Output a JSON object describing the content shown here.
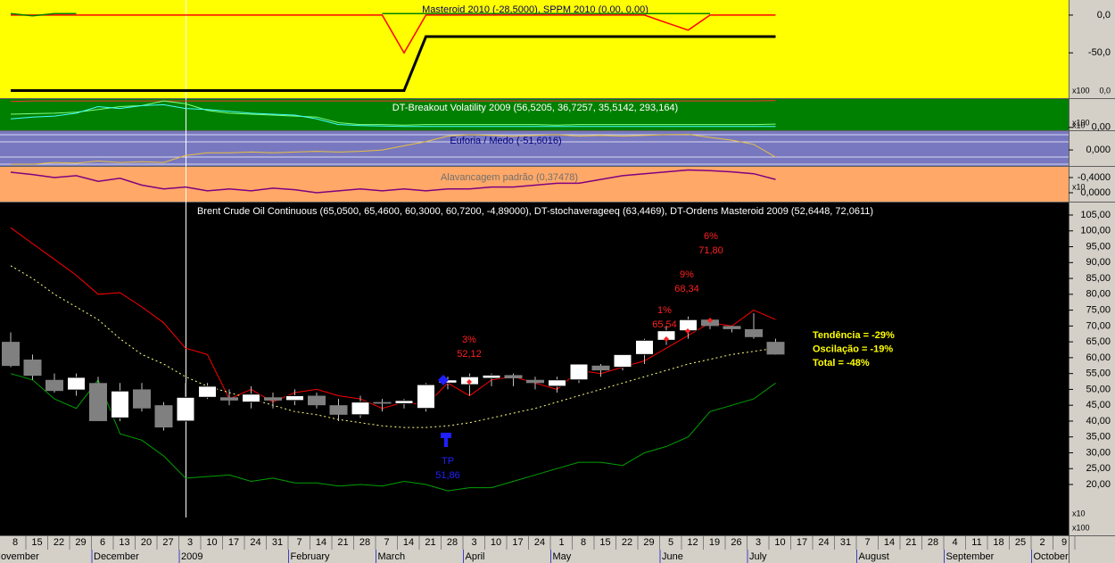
{
  "chart_data": [
    {
      "type": "line",
      "title": "Masteroid 2010 (-28,5000), SPPM 2010 (0,00, 0,00)",
      "ylim": [
        -110,
        20
      ],
      "yticks": [
        {
          "value": 0,
          "label": "0,0"
        },
        {
          "value": -50,
          "label": "-50,0"
        }
      ],
      "axis_texts": [
        "x100",
        "0,0"
      ],
      "series": [
        {
          "color": "#ff0000",
          "width": 1.5,
          "values": [
            0,
            0,
            0,
            0,
            0,
            0,
            0,
            0,
            0,
            0,
            0,
            0,
            0,
            0,
            0,
            0,
            0,
            0,
            -50,
            0,
            0,
            0,
            0,
            0,
            0,
            0,
            0,
            0,
            0,
            0,
            -10,
            -20,
            0,
            0,
            0,
            0,
            null,
            null,
            null,
            null,
            null,
            null,
            null,
            null,
            null,
            null,
            null,
            null,
            null
          ]
        },
        {
          "color": "#008000",
          "width": 1.5,
          "values": [
            2,
            -1,
            2,
            2,
            null,
            null,
            null,
            null,
            null,
            null,
            null,
            null,
            null,
            null,
            null,
            null,
            null,
            2,
            2,
            2,
            2,
            2,
            2,
            2,
            2,
            2,
            2,
            2,
            2,
            2,
            2,
            2,
            2,
            null,
            null,
            null,
            null,
            null,
            null,
            null,
            null,
            null,
            null,
            null,
            null,
            null,
            null,
            null,
            null
          ]
        },
        {
          "color": "#000000",
          "width": 3,
          "values": [
            -100,
            -100,
            -100,
            -100,
            -100,
            -100,
            -100,
            -100,
            -100,
            -100,
            -100,
            -100,
            -100,
            -100,
            -100,
            -100,
            -100,
            -100,
            -100,
            -28.5,
            -28.5,
            -28.5,
            -28.5,
            -28.5,
            -28.5,
            -28.5,
            -28.5,
            -28.5,
            -28.5,
            -28.5,
            -28.5,
            -28.5,
            -28.5,
            -28.5,
            -28.5,
            -28.5,
            null,
            null,
            null,
            null,
            null,
            null,
            null,
            null,
            null,
            null,
            null,
            null,
            null
          ]
        }
      ]
    },
    {
      "type": "line",
      "title": "DT-Breakout Volatility 2009 (56,5205, 36,7257, 35,5142, 293,164)",
      "ylim": [
        -0.3,
        3.0
      ],
      "yticks": [
        {
          "value": 0,
          "label": "0,00"
        }
      ],
      "axis_texts": [
        "x100"
      ],
      "series": [
        {
          "color": "#ff3030",
          "width": 1,
          "values": [
            2.75,
            2.8,
            2.8,
            2.8,
            2.8,
            2.8,
            2.8,
            2.8,
            2.8,
            2.8,
            2.8,
            2.8,
            2.8,
            2.8,
            2.8,
            2.8,
            2.8,
            2.8,
            2.8,
            2.8,
            2.8,
            2.8,
            2.8,
            2.8,
            2.8,
            2.8,
            2.8,
            2.8,
            2.8,
            2.8,
            2.8,
            2.8,
            2.8,
            2.8,
            2.8,
            2.85,
            null,
            null,
            null,
            null,
            null,
            null,
            null,
            null,
            null,
            null,
            null,
            null,
            null
          ]
        },
        {
          "color": "#80ff80",
          "width": 1,
          "values": [
            1.4,
            1.45,
            1.5,
            1.6,
            1.9,
            2.2,
            2.3,
            2.8,
            2.5,
            1.8,
            1.5,
            1.4,
            1.3,
            1.2,
            1.1,
            0.5,
            0.3,
            0.3,
            0.25,
            0.3,
            0.3,
            0.3,
            0.3,
            0.3,
            0.3,
            0.25,
            0.3,
            0.3,
            0.3,
            0.3,
            0.3,
            0.3,
            0.3,
            0.3,
            0.3,
            0.35,
            null,
            null,
            null,
            null,
            null,
            null,
            null,
            null,
            null,
            null,
            null,
            null,
            null
          ]
        },
        {
          "color": "#40ffff",
          "width": 1,
          "values": [
            0.9,
            1.1,
            1.2,
            1.5,
            2.2,
            2.0,
            2.3,
            2.4,
            2.0,
            1.9,
            1.7,
            1.5,
            1.4,
            1.3,
            0.9,
            0.3,
            0.2,
            0.15,
            0.1,
            0.1,
            0.1,
            0.1,
            0.1,
            0.1,
            0.1,
            0.1,
            0.1,
            0.1,
            0.1,
            0.1,
            0.1,
            0.1,
            0.1,
            0.1,
            0.1,
            0.1,
            null,
            null,
            null,
            null,
            null,
            null,
            null,
            null,
            null,
            null,
            null,
            null,
            null
          ]
        }
      ]
    },
    {
      "type": "line",
      "title": "Euforia / Medo (-51,6016)",
      "ylim": [
        -115,
        135
      ],
      "yticks": [
        {
          "value": 0,
          "label": "0,000"
        }
      ],
      "axis_texts": [
        "x10"
      ],
      "series": [
        {
          "color": "#e8c040",
          "width": 1,
          "values": [
            -103,
            -103,
            -90,
            -95,
            -80,
            -90,
            -85,
            -90,
            -40,
            -20,
            -20,
            -15,
            -20,
            -15,
            -10,
            -15,
            -10,
            0,
            30,
            60,
            100,
            110,
            105,
            100,
            105,
            110,
            100,
            105,
            100,
            105,
            110,
            112,
            90,
            70,
            40,
            -51.6,
            null,
            null,
            null,
            null,
            null,
            null,
            null,
            null,
            null,
            null,
            null,
            null,
            null
          ]
        }
      ]
    },
    {
      "type": "line",
      "title": "Alavancagem padrão (0,37478)",
      "ylim": [
        0.235,
        -0.682
      ],
      "yticks": [
        {
          "value": -0.4,
          "label": "-0,4000"
        },
        {
          "value": 0,
          "label": "0,0000"
        }
      ],
      "axis_texts": [
        "x10"
      ],
      "series": [
        {
          "color": "#800080",
          "width": 1.5,
          "values": [
            -0.54,
            -0.48,
            -0.4,
            -0.45,
            -0.3,
            -0.38,
            -0.2,
            -0.1,
            -0.15,
            -0.05,
            -0.1,
            -0.05,
            -0.12,
            -0.08,
            0.0,
            -0.05,
            -0.1,
            -0.05,
            -0.1,
            -0.05,
            -0.1,
            -0.1,
            -0.15,
            -0.15,
            -0.2,
            -0.25,
            -0.25,
            -0.35,
            -0.45,
            -0.5,
            -0.55,
            -0.6,
            -0.58,
            -0.55,
            -0.5,
            -0.35,
            null,
            null,
            null,
            null,
            null,
            null,
            null,
            null,
            null,
            null,
            null,
            null,
            null
          ]
        }
      ]
    },
    {
      "type": "candlestick",
      "title": "Brent Crude Oil Continuous (65,0500, 65,4600, 60,3000, 60,7200, -4,89000), DT-stochaverageeq (63,4469), DT-Ordens Masteroid 2009 (52,6448, 72,0611)",
      "categories": [
        "8",
        "15",
        "22",
        "29",
        "6",
        "13",
        "20",
        "27",
        "3",
        "10",
        "17",
        "24",
        "31",
        "7",
        "14",
        "21",
        "28",
        "7",
        "14",
        "21",
        "28",
        "3",
        "10",
        "17",
        "24",
        "1",
        "8",
        "15",
        "22",
        "29",
        "5",
        "12",
        "19",
        "26",
        "3",
        "10",
        "17",
        "24",
        "31",
        "7",
        "14",
        "21",
        "28",
        "4",
        "11",
        "18",
        "25",
        "2",
        "9"
      ],
      "months": [
        "November",
        "December",
        "2009",
        "February",
        "March",
        "April",
        "May",
        "June",
        "July",
        "August",
        "September",
        "October"
      ],
      "open": [
        65,
        59.4,
        53,
        49.8,
        52,
        41,
        50,
        45,
        40,
        47.5,
        47.5,
        46,
        47.5,
        46.5,
        48,
        45,
        42,
        46,
        45.5,
        44,
        52,
        51.5,
        53.5,
        54.5,
        53,
        51,
        53,
        57.5,
        57,
        61,
        65.5,
        68.5,
        72,
        70,
        69,
        65,
        null,
        null,
        null,
        null,
        null,
        null,
        null,
        null,
        null,
        null,
        null,
        null,
        null
      ],
      "high": [
        68,
        61,
        55,
        55,
        54,
        52,
        52,
        46,
        52,
        52,
        50,
        51,
        49,
        50,
        49,
        47,
        48,
        47,
        47,
        52,
        54,
        55,
        55,
        55,
        54,
        54,
        58,
        58,
        61,
        66,
        70,
        73,
        72,
        70,
        74,
        66,
        null,
        null,
        null,
        null,
        null,
        null,
        null,
        null,
        null,
        null,
        null,
        null,
        null
      ],
      "low": [
        57,
        53,
        49,
        48,
        40,
        40,
        43,
        37,
        40,
        47,
        45,
        44,
        44,
        45,
        44,
        40,
        41,
        43,
        44,
        43,
        50,
        48,
        51,
        51,
        50,
        49,
        52,
        54,
        56,
        58,
        64,
        66,
        69,
        68,
        66,
        61,
        null,
        null,
        null,
        null,
        null,
        null,
        null,
        null,
        null,
        null,
        null,
        null,
        null
      ],
      "close": [
        57.4,
        54.3,
        49.5,
        53.8,
        40,
        49.5,
        44,
        38,
        47.5,
        51,
        46.5,
        48.5,
        46.5,
        48,
        45,
        42,
        46,
        45.5,
        46.5,
        51.5,
        53,
        54,
        54.5,
        53.5,
        52,
        53,
        58,
        56,
        61,
        65.5,
        68.5,
        72,
        70,
        69,
        66.5,
        61,
        null,
        null,
        null,
        null,
        null,
        null,
        null,
        null,
        null,
        null,
        null,
        null,
        null
      ],
      "up_color": "#ffffff",
      "down_color": "#808080",
      "series": [
        {
          "color": "#ff0000",
          "values": [
            101,
            96,
            91,
            86,
            80,
            80.5,
            76,
            71,
            63,
            61,
            47,
            50,
            46,
            49,
            50,
            48,
            47,
            44,
            46,
            45,
            52,
            48,
            53,
            54,
            52,
            50,
            56,
            55,
            57,
            59,
            63,
            67,
            71,
            70,
            75,
            72,
            null,
            null,
            null,
            null,
            null,
            null,
            null,
            null,
            null,
            null,
            null,
            null,
            null
          ]
        },
        {
          "color": "#00a000",
          "values": [
            55,
            53,
            47,
            44,
            53,
            36,
            34,
            29,
            22,
            22.5,
            23,
            21,
            22,
            20.5,
            20.5,
            19.5,
            20,
            19.5,
            21,
            20,
            18,
            19,
            19,
            21,
            23,
            25,
            27,
            27,
            26,
            30,
            32,
            35,
            43,
            45,
            47,
            52,
            null,
            null,
            null,
            null,
            null,
            null,
            null,
            null,
            null,
            null,
            null,
            null,
            null
          ]
        },
        {
          "color": "#ffff80",
          "style": "dotted",
          "values": [
            89,
            85,
            80,
            76,
            72,
            66,
            61,
            58,
            54,
            51,
            49,
            47,
            45,
            43,
            42,
            40.5,
            39.5,
            38.5,
            38,
            38,
            38.5,
            39.5,
            41,
            42.5,
            44,
            46,
            48,
            50,
            52,
            54,
            56,
            58,
            59.5,
            61,
            62,
            63,
            null,
            null,
            null,
            null,
            null,
            null,
            null,
            null,
            null,
            null,
            null,
            null,
            null
          ]
        }
      ],
      "ylim": [
        3.96,
        108.94
      ],
      "yticks": [
        {
          "value": 105,
          "label": "105,00"
        },
        {
          "value": 100,
          "label": "100,00"
        },
        {
          "value": 95,
          "label": "95,00"
        },
        {
          "value": 90,
          "label": "90,00"
        },
        {
          "value": 85,
          "label": "85,00"
        },
        {
          "value": 80,
          "label": "80,00"
        },
        {
          "value": 75,
          "label": "75,00"
        },
        {
          "value": 70,
          "label": "70,00"
        },
        {
          "value": 65,
          "label": "65,00"
        },
        {
          "value": 60,
          "label": "60,00"
        },
        {
          "value": 55,
          "label": "55,00"
        },
        {
          "value": 50,
          "label": "50,00"
        },
        {
          "value": 45,
          "label": "45,00"
        },
        {
          "value": 40,
          "label": "40,00"
        },
        {
          "value": 35,
          "label": "35,00"
        },
        {
          "value": 30,
          "label": "30,00"
        },
        {
          "value": 25,
          "label": "25,00"
        },
        {
          "value": 20,
          "label": "20,00"
        }
      ],
      "axis_texts": [
        "x10",
        "x100"
      ],
      "annotations": [
        {
          "text": "3%",
          "color": "#ff2020"
        },
        {
          "text": "52,12",
          "color": "#ff2020"
        },
        {
          "text": "9%",
          "color": "#ff2020"
        },
        {
          "text": "68,34",
          "color": "#ff2020"
        },
        {
          "text": "6%",
          "color": "#ff2020"
        },
        {
          "text": "71,80",
          "color": "#ff2020"
        },
        {
          "text": "1%",
          "color": "#ff2020"
        },
        {
          "text": "65,54",
          "color": "#ff2020"
        },
        {
          "text": "TP",
          "color": "#2020ff"
        },
        {
          "text": "51,86",
          "color": "#2020ff"
        }
      ],
      "summary": [
        "Tendência = -29%",
        "Oscilação = -19%",
        "Total = -48%"
      ]
    }
  ]
}
